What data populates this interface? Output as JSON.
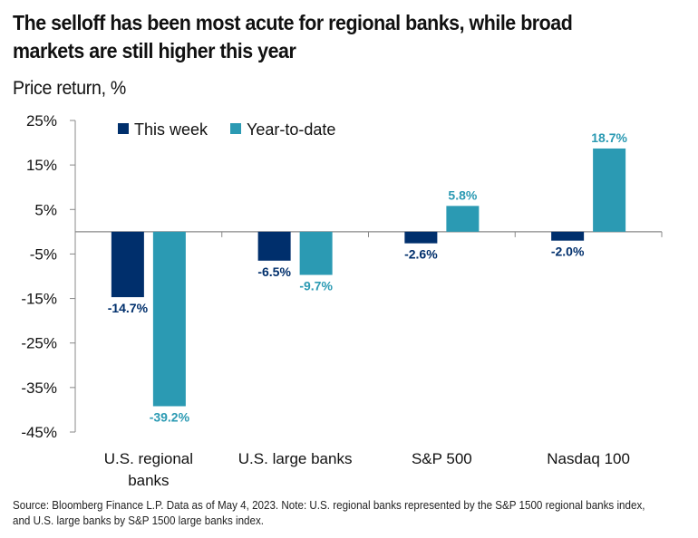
{
  "chart_data": {
    "type": "bar",
    "title": "The selloff has been most acute for regional banks, while broad markets are still higher this year",
    "subtitle": "Price return, %",
    "xlabel": "",
    "ylabel": "Price return, %",
    "categories": [
      "U.S. regional banks",
      "U.S. large banks",
      "S&P 500",
      "Nasdaq 100"
    ],
    "category_lines": [
      [
        "U.S. regional",
        "banks"
      ],
      [
        "U.S. large banks"
      ],
      [
        "S&P 500"
      ],
      [
        "Nasdaq 100"
      ]
    ],
    "series": [
      {
        "name": "This week",
        "color": "#002f6c",
        "values": [
          -14.7,
          -6.5,
          -2.6,
          -2.0
        ],
        "labels": [
          "-14.7%",
          "-6.5%",
          "-2.6%",
          "-2.0%"
        ]
      },
      {
        "name": "Year-to-date",
        "color": "#2b9ab3",
        "values": [
          -39.2,
          -9.7,
          5.8,
          18.7
        ],
        "labels": [
          "-39.2%",
          "-9.7%",
          "5.8%",
          "18.7%"
        ]
      }
    ],
    "ylim": [
      -45,
      25
    ],
    "yticks": [
      25,
      15,
      5,
      -5,
      -15,
      -25,
      -35,
      -45
    ],
    "ytick_labels": [
      "25%",
      "15%",
      "5%",
      "-5%",
      "-15%",
      "-25%",
      "-35%",
      "-45%"
    ],
    "grid": false,
    "legend_position": "top-left"
  },
  "footnote": "Source: Bloomberg Finance L.P. Data as of May 4, 2023. Note: U.S. regional banks represented by the S&P 1500 regional banks index, and U.S. large banks by S&P 1500 large banks index."
}
